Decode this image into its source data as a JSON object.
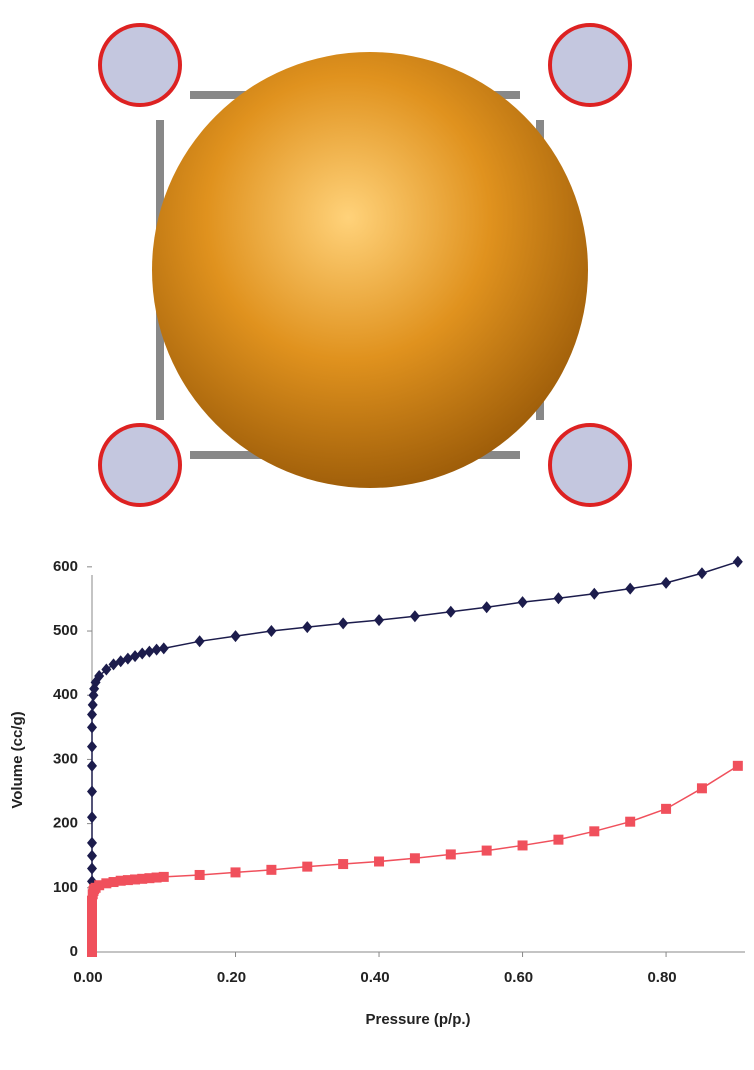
{
  "chart_data": {
    "type": "line",
    "x": [
      0,
      0,
      0,
      0,
      0,
      0,
      0,
      0,
      0,
      0,
      0.001,
      0.002,
      0.003,
      0.005,
      0.01,
      0.02,
      0.03,
      0.04,
      0.05,
      0.06,
      0.07,
      0.08,
      0.09,
      0.1,
      0.15,
      0.2,
      0.25,
      0.3,
      0.35,
      0.4,
      0.45,
      0.5,
      0.55,
      0.6,
      0.65,
      0.7,
      0.75,
      0.8,
      0.85,
      0.9
    ],
    "series": [
      {
        "color": "#1c1c4c",
        "marker": "diamond",
        "values": [
          110,
          130,
          150,
          170,
          210,
          250,
          290,
          320,
          350,
          370,
          385,
          400,
          410,
          420,
          430,
          440,
          448,
          453,
          457,
          461,
          465,
          468,
          471,
          473,
          484,
          492,
          500,
          506,
          512,
          517,
          523,
          530,
          537,
          545,
          551,
          558,
          566,
          575,
          590,
          608
        ]
      },
      {
        "color": "#f0505c",
        "marker": "square",
        "values": [
          0,
          5,
          10,
          20,
          30,
          40,
          50,
          60,
          70,
          80,
          90,
          95,
          98,
          100,
          104,
          107,
          109,
          111,
          112,
          113,
          114,
          115,
          116,
          117,
          120,
          124,
          128,
          133,
          137,
          141,
          146,
          152,
          158,
          166,
          175,
          188,
          203,
          223,
          255,
          290
        ]
      }
    ],
    "xlabel": "Pressure (p/p.)",
    "ylabel": "Volume (cc/g)",
    "xlim": [
      0,
      0.91
    ],
    "ylim": [
      0,
      620
    ],
    "xticks": [
      {
        "value": 0,
        "label": "0.00"
      },
      {
        "value": 0.2,
        "label": "0.20"
      },
      {
        "value": 0.4,
        "label": "0.40"
      },
      {
        "value": 0.6,
        "label": "0.60"
      },
      {
        "value": 0.8,
        "label": "0.80"
      }
    ],
    "yticks": [
      0,
      100,
      200,
      300,
      400,
      500,
      600
    ]
  }
}
